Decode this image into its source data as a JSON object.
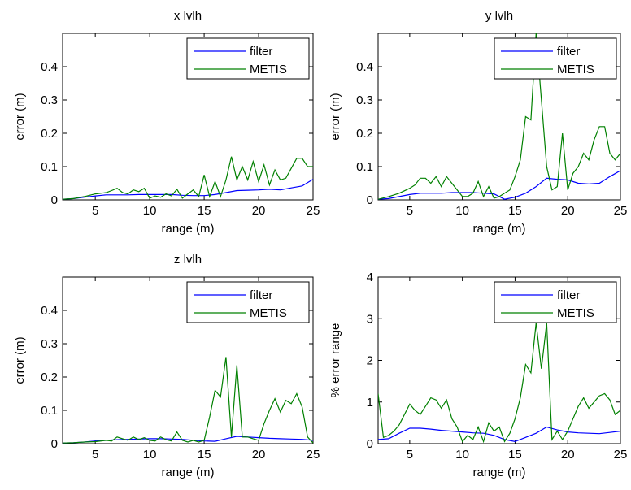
{
  "chart_data": [
    {
      "type": "line",
      "title": "x lvlh",
      "xlabel": "range (m)",
      "ylabel": "error (m)",
      "xlim": [
        2,
        25
      ],
      "ylim": [
        0,
        0.5
      ],
      "xticks": [
        5,
        10,
        15,
        20,
        25
      ],
      "yticks": [
        0,
        0.1,
        0.2,
        0.3,
        0.4
      ],
      "legend": "top-right",
      "series": [
        {
          "name": "filter",
          "color": "#0000ff",
          "x": [
            2,
            3,
            4,
            5,
            6,
            7,
            8,
            9,
            10,
            11,
            12,
            13,
            14,
            15,
            16,
            17,
            18,
            19,
            20,
            21,
            22,
            23,
            24,
            25
          ],
          "y": [
            0.002,
            0.004,
            0.008,
            0.012,
            0.015,
            0.015,
            0.015,
            0.016,
            0.016,
            0.016,
            0.016,
            0.014,
            0.013,
            0.013,
            0.016,
            0.022,
            0.028,
            0.029,
            0.03,
            0.032,
            0.03,
            0.036,
            0.042,
            0.062
          ]
        },
        {
          "name": "METIS",
          "color": "#008000",
          "x": [
            2,
            3,
            4,
            5,
            6,
            6.5,
            7,
            7.5,
            8,
            8.5,
            9,
            9.5,
            10,
            10.5,
            11,
            11.5,
            12,
            12.5,
            13,
            13.5,
            14,
            14.5,
            15,
            15.5,
            16,
            16.5,
            17,
            17.5,
            18,
            18.5,
            19,
            19.5,
            20,
            20.5,
            21,
            21.5,
            22,
            22.5,
            23,
            23.5,
            24,
            24.5,
            25
          ],
          "y": [
            0.002,
            0.004,
            0.01,
            0.018,
            0.022,
            0.028,
            0.035,
            0.022,
            0.018,
            0.03,
            0.025,
            0.035,
            0.005,
            0.012,
            0.008,
            0.018,
            0.012,
            0.032,
            0.005,
            0.018,
            0.03,
            0.01,
            0.075,
            0.01,
            0.055,
            0.01,
            0.06,
            0.13,
            0.06,
            0.1,
            0.06,
            0.115,
            0.055,
            0.105,
            0.045,
            0.09,
            0.06,
            0.065,
            0.095,
            0.125,
            0.125,
            0.1,
            0.1
          ]
        }
      ]
    },
    {
      "type": "line",
      "title": "y lvlh",
      "xlabel": "range (m)",
      "ylabel": "error (m)",
      "xlim": [
        2,
        25
      ],
      "ylim": [
        0,
        0.5
      ],
      "xticks": [
        5,
        10,
        15,
        20,
        25
      ],
      "yticks": [
        0,
        0.1,
        0.2,
        0.3,
        0.4
      ],
      "legend": "top-right",
      "series": [
        {
          "name": "filter",
          "color": "#0000ff",
          "x": [
            2,
            3,
            4,
            5,
            6,
            7,
            8,
            9,
            10,
            11,
            12,
            13,
            14,
            15,
            16,
            17,
            18,
            19,
            20,
            21,
            22,
            23,
            24,
            25
          ],
          "y": [
            0.002,
            0.004,
            0.01,
            0.016,
            0.02,
            0.02,
            0.02,
            0.022,
            0.022,
            0.022,
            0.02,
            0.018,
            0.002,
            0.008,
            0.02,
            0.04,
            0.065,
            0.062,
            0.06,
            0.05,
            0.048,
            0.05,
            0.07,
            0.088
          ]
        },
        {
          "name": "METIS",
          "color": "#008000",
          "x": [
            2,
            3,
            4,
            5,
            5.5,
            6,
            6.5,
            7,
            7.5,
            8,
            8.5,
            9,
            9.5,
            10,
            10.5,
            11,
            11.5,
            12,
            12.5,
            13,
            13.5,
            14,
            14.5,
            15,
            15.5,
            16,
            16.5,
            17,
            17.5,
            18,
            18.5,
            19,
            19.5,
            20,
            20.5,
            21,
            21.5,
            22,
            22.5,
            23,
            23.5,
            24,
            24.5,
            25
          ],
          "y": [
            0.002,
            0.01,
            0.02,
            0.035,
            0.045,
            0.065,
            0.065,
            0.05,
            0.07,
            0.04,
            0.07,
            0.05,
            0.03,
            0.01,
            0.01,
            0.02,
            0.055,
            0.01,
            0.04,
            0.005,
            0.01,
            0.02,
            0.03,
            0.07,
            0.12,
            0.25,
            0.24,
            0.5,
            0.3,
            0.1,
            0.03,
            0.04,
            0.2,
            0.03,
            0.08,
            0.1,
            0.14,
            0.12,
            0.18,
            0.22,
            0.22,
            0.14,
            0.12,
            0.14
          ]
        }
      ]
    },
    {
      "type": "line",
      "title": "z lvlh",
      "xlabel": "range (m)",
      "ylabel": "error (m)",
      "xlim": [
        2,
        25
      ],
      "ylim": [
        0,
        0.5
      ],
      "xticks": [
        5,
        10,
        15,
        20,
        25
      ],
      "yticks": [
        0,
        0.1,
        0.2,
        0.3,
        0.4
      ],
      "legend": "top-right",
      "series": [
        {
          "name": "filter",
          "color": "#0000ff",
          "x": [
            2,
            3,
            4,
            5,
            6,
            7,
            8,
            9,
            10,
            11,
            12,
            13,
            14,
            15,
            16,
            17,
            18,
            19,
            20,
            21,
            22,
            23,
            24,
            25
          ],
          "y": [
            0.002,
            0.003,
            0.005,
            0.008,
            0.01,
            0.012,
            0.013,
            0.014,
            0.015,
            0.015,
            0.014,
            0.013,
            0.01,
            0.008,
            0.007,
            0.015,
            0.022,
            0.02,
            0.018,
            0.016,
            0.015,
            0.014,
            0.013,
            0.01
          ]
        },
        {
          "name": "METIS",
          "color": "#008000",
          "x": [
            2,
            3,
            4,
            5,
            6,
            6.5,
            7,
            7.5,
            8,
            8.5,
            9,
            9.5,
            10,
            10.5,
            11,
            11.5,
            12,
            12.5,
            13,
            13.5,
            14,
            14.5,
            15,
            15.5,
            16,
            16.5,
            17,
            17.5,
            18,
            18.5,
            19,
            19.5,
            20,
            20.5,
            21,
            21.5,
            22,
            22.5,
            23,
            23.5,
            24,
            24.5,
            25
          ],
          "y": [
            0.002,
            0.003,
            0.005,
            0.006,
            0.01,
            0.008,
            0.02,
            0.015,
            0.01,
            0.02,
            0.012,
            0.018,
            0.01,
            0.008,
            0.02,
            0.012,
            0.008,
            0.035,
            0.01,
            0.005,
            0.01,
            0.005,
            0.01,
            0.08,
            0.16,
            0.14,
            0.26,
            0.02,
            0.235,
            0.02,
            0.02,
            0.015,
            0.01,
            0.06,
            0.1,
            0.135,
            0.095,
            0.13,
            0.12,
            0.15,
            0.11,
            0.02,
            0.002
          ]
        }
      ]
    },
    {
      "type": "line",
      "title": "",
      "xlabel": "range (m)",
      "ylabel": "% error range",
      "xlim": [
        2,
        25
      ],
      "ylim": [
        0,
        4
      ],
      "xticks": [
        5,
        10,
        15,
        20,
        25
      ],
      "yticks": [
        0,
        1,
        2,
        3,
        4
      ],
      "legend": "top-right",
      "series": [
        {
          "name": "filter",
          "color": "#0000ff",
          "x": [
            2,
            3,
            4,
            5,
            6,
            7,
            8,
            9,
            10,
            11,
            12,
            13,
            14,
            15,
            16,
            17,
            18,
            19,
            20,
            21,
            22,
            23,
            24,
            25
          ],
          "y": [
            0.1,
            0.12,
            0.25,
            0.37,
            0.37,
            0.35,
            0.32,
            0.3,
            0.28,
            0.26,
            0.25,
            0.2,
            0.1,
            0.05,
            0.15,
            0.25,
            0.4,
            0.33,
            0.28,
            0.26,
            0.25,
            0.24,
            0.27,
            0.3
          ]
        },
        {
          "name": "METIS",
          "color": "#008000",
          "x": [
            2,
            2.5,
            3,
            3.5,
            4,
            4.5,
            5,
            5.5,
            6,
            6.5,
            7,
            7.5,
            8,
            8.5,
            9,
            9.5,
            10,
            10.5,
            11,
            11.5,
            12,
            12.5,
            13,
            13.5,
            14,
            14.5,
            15,
            15.5,
            16,
            16.5,
            17,
            17.5,
            18,
            18.5,
            19,
            19.5,
            20,
            20.5,
            21,
            21.5,
            22,
            22.5,
            23,
            23.5,
            24,
            24.5,
            25
          ],
          "y": [
            1.2,
            0.15,
            0.2,
            0.3,
            0.45,
            0.7,
            0.95,
            0.8,
            0.7,
            0.9,
            1.1,
            1.05,
            0.85,
            1.05,
            0.6,
            0.4,
            0.05,
            0.2,
            0.1,
            0.4,
            0.05,
            0.5,
            0.3,
            0.4,
            0.05,
            0.25,
            0.6,
            1.1,
            1.9,
            1.7,
            2.9,
            1.8,
            2.9,
            0.1,
            0.3,
            0.1,
            0.3,
            0.6,
            0.9,
            1.1,
            0.85,
            1.0,
            1.15,
            1.2,
            1.05,
            0.7,
            0.8
          ]
        }
      ]
    }
  ]
}
